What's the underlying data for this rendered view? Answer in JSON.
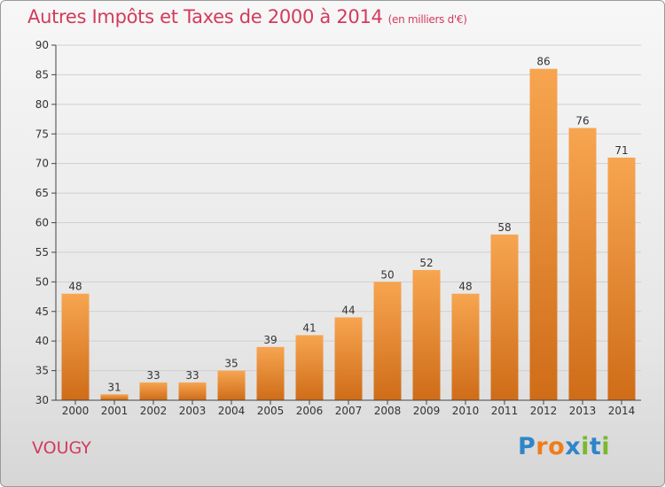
{
  "chart_data": {
    "type": "bar",
    "title": "Autres Impôts et Taxes de 2000 à 2014",
    "subtitle": "(en milliers d'€)",
    "categories": [
      "2000",
      "2001",
      "2002",
      "2003",
      "2004",
      "2005",
      "2006",
      "2007",
      "2008",
      "2009",
      "2010",
      "2011",
      "2012",
      "2013",
      "2014"
    ],
    "values": [
      48,
      31,
      33,
      33,
      35,
      39,
      41,
      44,
      50,
      52,
      48,
      58,
      86,
      76,
      71
    ],
    "ylim": [
      30,
      90
    ],
    "yticks": [
      30,
      35,
      40,
      45,
      50,
      55,
      60,
      65,
      70,
      75,
      80,
      85,
      90
    ],
    "grid": true,
    "xlabel": "",
    "ylabel": ""
  },
  "place_name": "VOUGY",
  "logo": {
    "text": "Proxiti",
    "letters": [
      "P",
      "r",
      "o",
      "x",
      "i",
      "t",
      "i"
    ],
    "colors": [
      "#2e86c8",
      "#f07d1a",
      "#f07d1a",
      "#2e86c8",
      "#7ab82e",
      "#2e86c8",
      "#7ab82e"
    ]
  },
  "colors": {
    "title": "#d23b5c",
    "bar_top": "#f7a550",
    "bar_bottom": "#cf6c18",
    "grid": "#cfcfcf"
  }
}
